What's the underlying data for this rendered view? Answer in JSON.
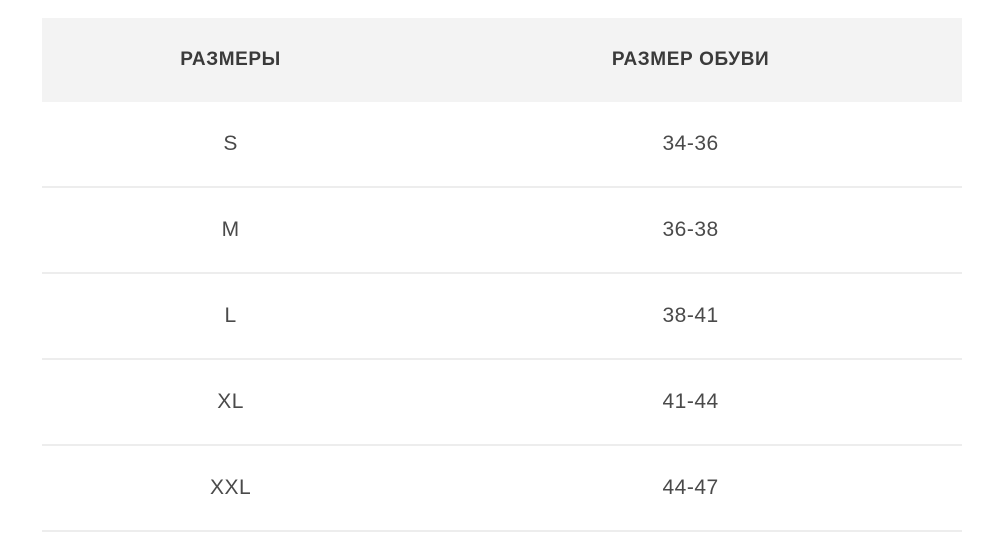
{
  "table": {
    "columns": [
      {
        "label": "РАЗМЕРЫ"
      },
      {
        "label": "РАЗМЕР ОБУВИ"
      }
    ],
    "rows": [
      {
        "size": "S",
        "shoe_size": "34-36"
      },
      {
        "size": "M",
        "shoe_size": "36-38"
      },
      {
        "size": "L",
        "shoe_size": "38-41"
      },
      {
        "size": "XL",
        "shoe_size": "41-44"
      },
      {
        "size": "XXL",
        "shoe_size": "44-47"
      }
    ]
  },
  "colors": {
    "header_bg": "#f3f3f3",
    "divider": "#ededed",
    "header_text": "#3a3a3a",
    "row_text": "#4a4a4a",
    "page_bg": "#ffffff"
  }
}
